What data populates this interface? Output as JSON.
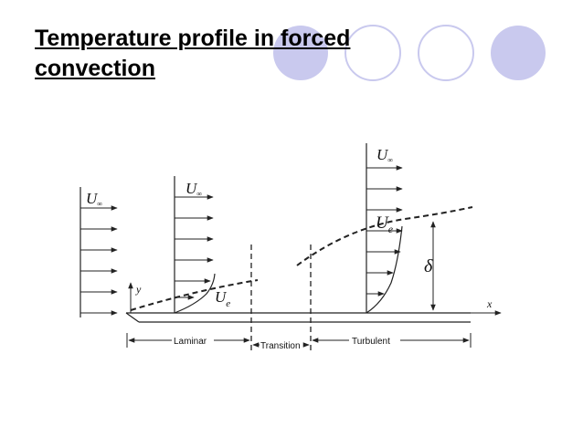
{
  "slide": {
    "title_line1": "Temperature profile in forced",
    "title_line2": "convection",
    "accent_color": "#c9c9ee"
  },
  "diagram": {
    "symbols": {
      "u_inf_1": "U",
      "u_inf_1_sub": "∞",
      "u_inf_2": "U",
      "u_inf_2_sub": "∞",
      "u_inf_3": "U",
      "u_inf_3_sub": "∞",
      "u_e_laminar": "U",
      "u_e_laminar_sub": "e",
      "u_e_turbulent": "U",
      "u_e_turbulent_sub": "e",
      "delta": "δ",
      "y_axis": "y",
      "x_axis": "x"
    },
    "regions": {
      "laminar": "Laminar",
      "transition": "Transition",
      "turbulent": "Turbulent"
    }
  }
}
